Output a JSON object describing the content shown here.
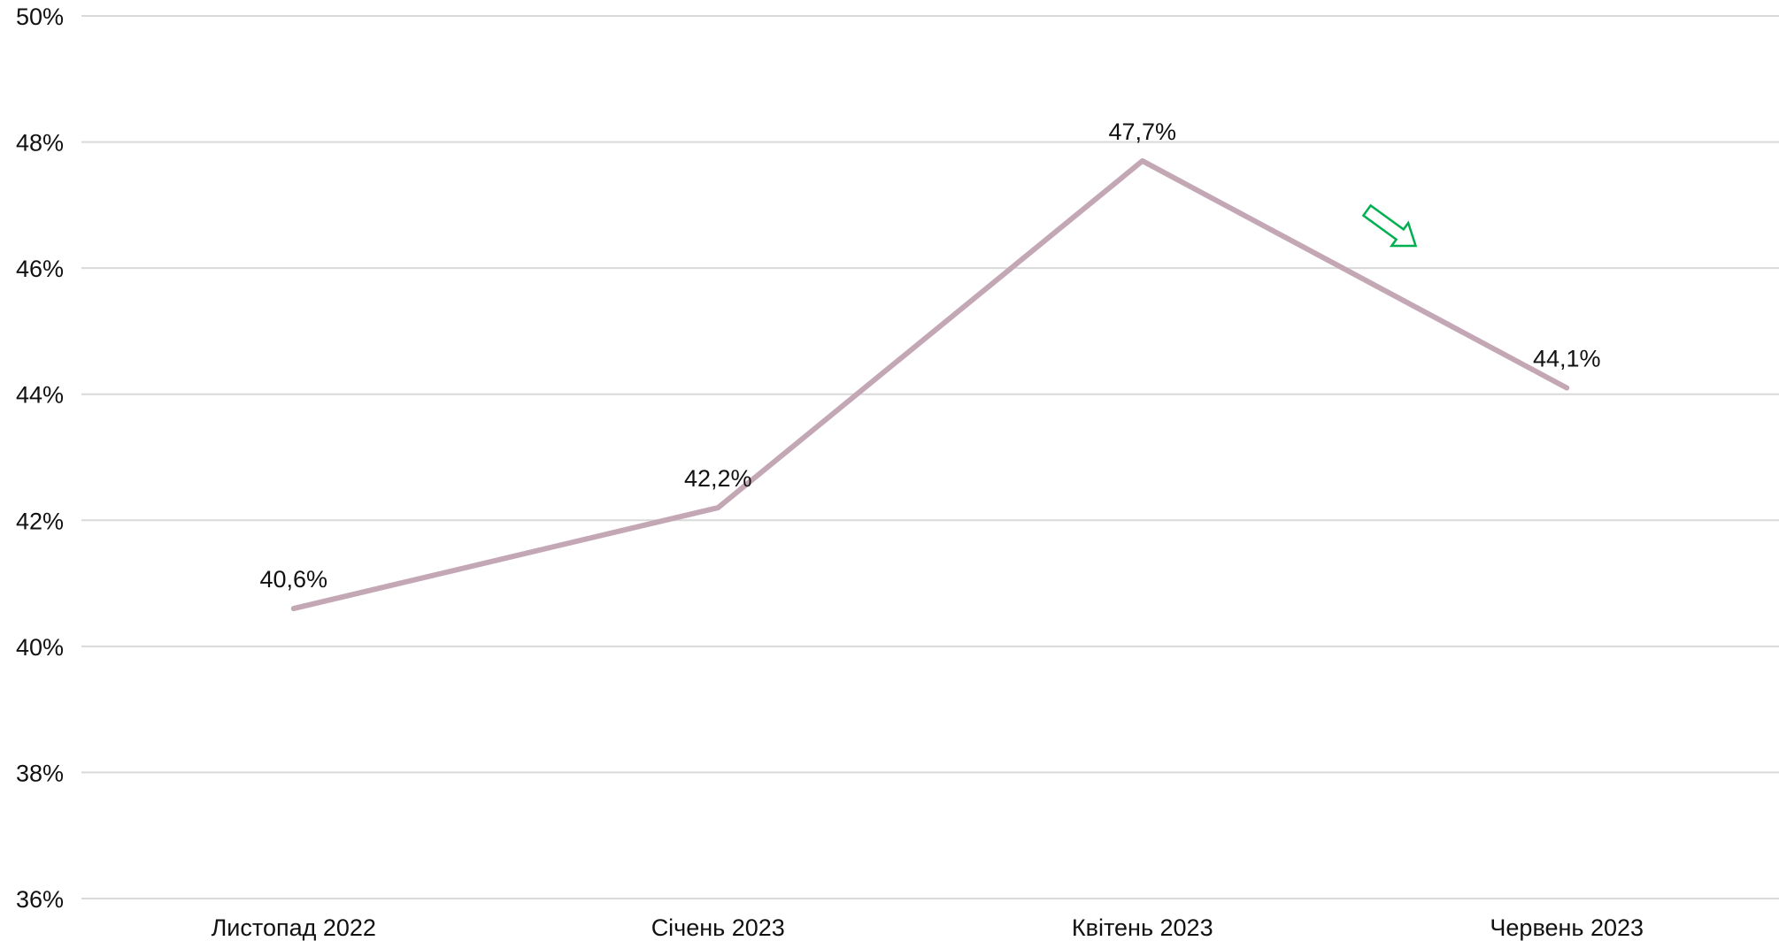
{
  "chart_data": {
    "type": "line",
    "title": "",
    "xlabel": "",
    "ylabel": "",
    "categories": [
      "Листопад 2022",
      "Січень 2023",
      "Квітень 2023",
      "Червень 2023"
    ],
    "series": [
      {
        "values": [
          40.6,
          42.2,
          47.7,
          44.1
        ],
        "data_labels": [
          "40,6%",
          "42,2%",
          "47,7%",
          "44,1%"
        ],
        "color": "#c4a7b4"
      }
    ],
    "ylim": [
      36,
      50
    ],
    "yticks": [
      36,
      38,
      40,
      42,
      44,
      46,
      48,
      50
    ],
    "ytick_labels": [
      "36%",
      "38%",
      "40%",
      "42%",
      "44%",
      "46%",
      "48%",
      "50%"
    ],
    "grid": true,
    "legend": "none",
    "annotations": [
      {
        "type": "arrow",
        "direction": "down-right",
        "color": "#00b050",
        "icon": "trend-down-arrow-icon"
      }
    ]
  }
}
